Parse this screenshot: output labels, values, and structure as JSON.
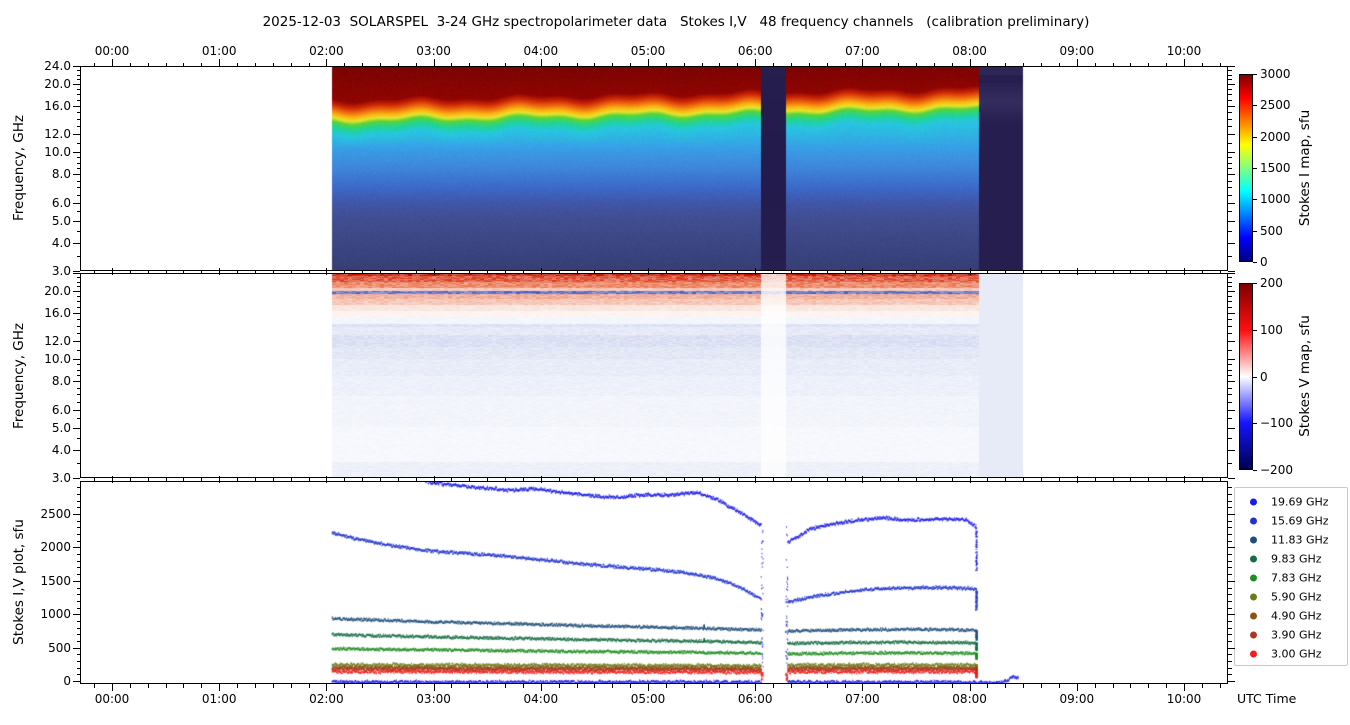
{
  "title": "2025-12-03  SOLARSPEL  3-24 GHz spectropolarimeter data   Stokes I,V   48 frequency channels   (calibration preliminary)",
  "axes": {
    "x_major_labels": [
      "00:00",
      "01:00",
      "02:00",
      "03:00",
      "04:00",
      "05:00",
      "06:00",
      "07:00",
      "08:00",
      "09:00",
      "10:00"
    ],
    "x_axis_label": "UTC Time",
    "freq_axis_label": "Frequency, GHz",
    "freq_major_ticks": [
      {
        "value": 24,
        "label": "24.0"
      },
      {
        "value": 20,
        "label": "20.0"
      },
      {
        "value": 16,
        "label": "16.0"
      },
      {
        "value": 12,
        "label": "12.0"
      },
      {
        "value": 10,
        "label": "10.0"
      },
      {
        "value": 8,
        "label": "8.0"
      },
      {
        "value": 6,
        "label": "6.0"
      },
      {
        "value": 5,
        "label": "5.0"
      },
      {
        "value": 4,
        "label": "4.0"
      },
      {
        "value": 3,
        "label": "3.0"
      }
    ],
    "p3_axis_label": "Stokes I,V plot, sfu",
    "p3_major_ticks": [
      {
        "value": 0,
        "label": "0"
      },
      {
        "value": 500,
        "label": "500"
      },
      {
        "value": 1000,
        "label": "1000"
      },
      {
        "value": 1500,
        "label": "1500"
      },
      {
        "value": 2000,
        "label": "2000"
      },
      {
        "value": 2500,
        "label": "2500"
      }
    ]
  },
  "colorbars": [
    {
      "label": "Stokes I map, sfu",
      "colormap": "jet",
      "range_sfu": [
        0,
        3000
      ],
      "tick_labels": [
        "3000",
        "2500",
        "2000",
        "1500",
        "1000",
        "500",
        "0"
      ]
    },
    {
      "label": "Stokes V map, sfu",
      "colormap": "seismic",
      "range_sfu": [
        -200,
        200
      ],
      "tick_labels": [
        "200",
        "100",
        "0",
        "−100",
        "−200"
      ]
    }
  ],
  "legend": {
    "entries": [
      {
        "label": "19.69 GHz",
        "color": "#1b1be8"
      },
      {
        "label": "15.69 GHz",
        "color": "#2033cc"
      },
      {
        "label": "11.83 GHz",
        "color": "#1f4e79"
      },
      {
        "label": "9.83 GHz",
        "color": "#156d43"
      },
      {
        "label": "7.83 GHz",
        "color": "#1f8c1f"
      },
      {
        "label": "5.90 GHz",
        "color": "#6d7c1a"
      },
      {
        "label": "4.90 GHz",
        "color": "#8a5513"
      },
      {
        "label": "3.90 GHz",
        "color": "#aa3a1e"
      },
      {
        "label": "3.00 GHz",
        "color": "#f21d1d"
      }
    ]
  },
  "chart_data": [
    {
      "type": "heatmap",
      "name": "stokes_i_map",
      "y_scale": "log",
      "y_range_ghz": [
        3,
        24
      ],
      "value_range_sfu": [
        0,
        3000
      ],
      "time_start_h": 2.05,
      "time_end_h": 8.08,
      "gap_h": [
        6.05,
        6.28
      ],
      "off_sun_tail_h": [
        8.08,
        8.49
      ],
      "gap_color": "#261e4e",
      "top_color": "#7a0403",
      "band_top_frac_start": 0.165,
      "band_top_frac_end": 0.105,
      "upper_stops_rel": [
        [
          0.0,
          "#8f0502"
        ],
        [
          0.025,
          "#cc2606"
        ],
        [
          0.052,
          "#f0720f"
        ],
        [
          0.072,
          "#f9b513"
        ],
        [
          0.09,
          "#e8e32b"
        ],
        [
          0.108,
          "#55d43c"
        ],
        [
          0.135,
          "#1fd497"
        ],
        [
          0.17,
          "#27c6e0"
        ]
      ],
      "lower_stops_abs": [
        [
          0.4,
          "#389fe6"
        ],
        [
          0.5,
          "#3f84da"
        ],
        [
          0.6,
          "#3c67c6"
        ],
        [
          0.67,
          "#4056a6"
        ],
        [
          0.74,
          "#414e92"
        ],
        [
          0.85,
          "#3c4785"
        ],
        [
          1.0,
          "#363e74"
        ]
      ]
    },
    {
      "type": "heatmap",
      "name": "stokes_v_map",
      "y_scale": "log",
      "y_range_ghz": [
        3,
        24
      ],
      "value_range_sfu": [
        -200,
        200
      ],
      "time_start_h": 2.05,
      "time_end_h": 8.08,
      "gap_h": [
        6.05,
        6.28
      ],
      "off_sun_tail_h": [
        8.08,
        8.49
      ],
      "tail_color": "#e7ebf7",
      "bands_frac_color": [
        [
          0.015,
          "#c23422"
        ],
        [
          0.042,
          "#e2634a"
        ],
        [
          0.075,
          "#ee8f70"
        ],
        [
          0.09,
          "#f6c9bb"
        ],
        [
          0.104,
          "#6d7ed0"
        ],
        [
          0.125,
          "#f2b2a0"
        ],
        [
          0.155,
          "#f6c8b9"
        ],
        [
          0.185,
          "#fae7df"
        ],
        [
          0.215,
          "#fdf4f1"
        ],
        [
          0.25,
          "#f4f6fc"
        ],
        [
          0.262,
          "#dee4f4"
        ],
        [
          0.3,
          "#e7eaf8"
        ],
        [
          0.36,
          "#dce2f4"
        ],
        [
          0.42,
          "#e3e8f6"
        ],
        [
          0.5,
          "#e9edf9"
        ],
        [
          0.6,
          "#eef1fb"
        ],
        [
          0.75,
          "#f3f5fc"
        ],
        [
          0.92,
          "#f7f8fd"
        ],
        [
          1.0,
          "#eef1f9"
        ]
      ]
    },
    {
      "type": "line",
      "name": "stokes_iv_plot",
      "ylim_sfu": [
        -45,
        2995
      ],
      "x_unit": "hours UTC",
      "drop_time_h": 8.06,
      "series": [
        {
          "name": "19.69 GHz",
          "color": "#1b1be8",
          "amp": 12,
          "clip_top": true,
          "drop_to": 1670,
          "gap_speckle": true,
          "segments": [
            [
              [
                2.05,
                3090
              ],
              [
                2.5,
                3040
              ],
              [
                2.95,
                2990
              ],
              [
                3.2,
                2940
              ],
              [
                3.45,
                2900
              ],
              [
                3.7,
                2870
              ],
              [
                3.95,
                2890
              ],
              [
                4.2,
                2830
              ],
              [
                4.45,
                2790
              ],
              [
                4.7,
                2760
              ],
              [
                4.95,
                2800
              ],
              [
                5.2,
                2790
              ],
              [
                5.45,
                2840
              ],
              [
                5.65,
                2720
              ],
              [
                5.85,
                2540
              ],
              [
                6.05,
                2340
              ]
            ],
            [
              [
                6.3,
                2080
              ],
              [
                6.5,
                2280
              ],
              [
                6.7,
                2360
              ],
              [
                6.95,
                2420
              ],
              [
                7.2,
                2450
              ],
              [
                7.45,
                2420
              ],
              [
                7.7,
                2440
              ],
              [
                7.95,
                2430
              ],
              [
                8.06,
                2320
              ]
            ]
          ]
        },
        {
          "name": "15.69 GHz",
          "color": "#2033cc",
          "amp": 10,
          "drop_to": 1070,
          "gap_speckle": true,
          "segments": [
            [
              [
                2.05,
                2230
              ],
              [
                2.3,
                2130
              ],
              [
                2.6,
                2040
              ],
              [
                2.9,
                1970
              ],
              [
                3.2,
                1930
              ],
              [
                3.5,
                1900
              ],
              [
                3.8,
                1860
              ],
              [
                4.1,
                1810
              ],
              [
                4.4,
                1760
              ],
              [
                4.7,
                1720
              ],
              [
                5.0,
                1690
              ],
              [
                5.3,
                1640
              ],
              [
                5.6,
                1560
              ],
              [
                5.85,
                1420
              ],
              [
                6.05,
                1240
              ]
            ],
            [
              [
                6.3,
                1190
              ],
              [
                6.55,
                1280
              ],
              [
                6.8,
                1340
              ],
              [
                7.05,
                1385
              ],
              [
                7.3,
                1400
              ],
              [
                7.55,
                1410
              ],
              [
                7.8,
                1405
              ],
              [
                8.06,
                1390
              ]
            ]
          ]
        },
        {
          "name": "11.83 GHz",
          "color": "#1f4e79",
          "amp": 6,
          "drop_to": 620,
          "spike_t": 5.52,
          "spike_dv": 50,
          "segments": [
            [
              [
                2.05,
                945
              ],
              [
                2.6,
                915
              ],
              [
                3.2,
                890
              ],
              [
                3.8,
                865
              ],
              [
                4.4,
                840
              ],
              [
                5.0,
                820
              ],
              [
                5.5,
                800
              ],
              [
                6.05,
                775
              ]
            ],
            [
              [
                6.3,
                760
              ],
              [
                6.8,
                775
              ],
              [
                7.3,
                785
              ],
              [
                7.8,
                780
              ],
              [
                8.06,
                770
              ]
            ]
          ]
        },
        {
          "name": "9.83 GHz",
          "color": "#156d43",
          "amp": 6,
          "drop_to": 470,
          "spike_t": 5.52,
          "spike_dv": 45,
          "segments": [
            [
              [
                2.05,
                705
              ],
              [
                2.6,
                685
              ],
              [
                3.2,
                665
              ],
              [
                3.8,
                648
              ],
              [
                4.4,
                632
              ],
              [
                5.0,
                618
              ],
              [
                5.5,
                605
              ],
              [
                6.05,
                585
              ]
            ],
            [
              [
                6.3,
                575
              ],
              [
                6.8,
                585
              ],
              [
                7.3,
                592
              ],
              [
                7.8,
                588
              ],
              [
                8.06,
                580
              ]
            ]
          ]
        },
        {
          "name": "7.83 GHz",
          "color": "#1f8c1f",
          "amp": 5,
          "drop_to": 340,
          "segments": [
            [
              [
                2.05,
                495
              ],
              [
                2.7,
                482
              ],
              [
                3.4,
                470
              ],
              [
                4.1,
                458
              ],
              [
                4.8,
                448
              ],
              [
                5.5,
                438
              ],
              [
                6.05,
                425
              ]
            ],
            [
              [
                6.3,
                418
              ],
              [
                6.9,
                428
              ],
              [
                7.5,
                432
              ],
              [
                8.06,
                425
              ]
            ]
          ]
        },
        {
          "name": "5.90 GHz",
          "color": "#6d7c1a",
          "amp": 11,
          "drop_to": 200,
          "segments": [
            [
              [
                2.05,
                252
              ],
              [
                4.0,
                248
              ],
              [
                6.05,
                240
              ]
            ],
            [
              [
                6.3,
                250
              ],
              [
                8.06,
                252
              ]
            ]
          ]
        },
        {
          "name": "4.90 GHz",
          "color": "#8a5513",
          "amp": 6,
          "drop_to": 170,
          "segments": [
            [
              [
                2.05,
                215
              ],
              [
                4.0,
                210
              ],
              [
                6.05,
                203
              ]
            ],
            [
              [
                6.3,
                210
              ],
              [
                8.06,
                210
              ]
            ]
          ]
        },
        {
          "name": "3.90 GHz",
          "color": "#aa3a1e",
          "amp": 7,
          "drop_to": 150,
          "segments": [
            [
              [
                2.05,
                190
              ],
              [
                4.0,
                186
              ],
              [
                6.05,
                180
              ]
            ],
            [
              [
                6.3,
                186
              ],
              [
                8.06,
                186
              ]
            ]
          ]
        },
        {
          "name": "3.00 GHz",
          "color": "#f21d1d",
          "amp": 11,
          "drop_to": 60,
          "gap_speckle": true,
          "segments": [
            [
              [
                2.05,
                152
              ],
              [
                4.0,
                148
              ],
              [
                6.05,
                143
              ]
            ],
            [
              [
                6.3,
                150
              ],
              [
                8.06,
                150
              ]
            ]
          ]
        },
        {
          "name": "near-zero V trace",
          "color": "#1b1be8",
          "amp": 9,
          "segments": [
            [
              [
                2.05,
                -5
              ],
              [
                6.05,
                -6
              ]
            ],
            [
              [
                6.3,
                -5
              ],
              [
                8.06,
                -8
              ]
            ],
            [
              [
                8.06,
                -12
              ],
              [
                8.18,
                -18
              ],
              [
                8.28,
                -12
              ],
              [
                8.34,
                15
              ],
              [
                8.4,
                78
              ],
              [
                8.45,
                60
              ]
            ]
          ]
        }
      ]
    }
  ]
}
